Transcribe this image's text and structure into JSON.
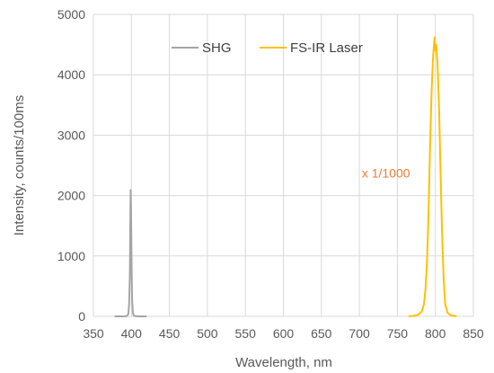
{
  "chart_data": {
    "type": "line",
    "xlabel": "Wavelength, nm",
    "ylabel": "Intensity, counts/100ms",
    "xlim": [
      350,
      850
    ],
    "ylim": [
      0,
      5000
    ],
    "x_ticks": [
      350,
      400,
      450,
      500,
      550,
      600,
      650,
      700,
      750,
      800,
      850
    ],
    "y_ticks": [
      0,
      1000,
      2000,
      3000,
      4000,
      5000
    ],
    "grid": true,
    "legend_position": "top-center",
    "annotation": {
      "text": "x 1/1000",
      "color": "#ED7D31",
      "x": 735,
      "y": 2300
    },
    "series": [
      {
        "name": "SHG",
        "color": "#A5A5A5",
        "x": [
          378,
          385,
          390,
          394,
          396,
          397,
          398,
          398.5,
          399,
          399.5,
          400,
          400.5,
          401,
          402,
          403,
          405,
          410,
          420
        ],
        "y": [
          0,
          0,
          0,
          5,
          40,
          200,
          700,
          1500,
          2090,
          1800,
          1200,
          600,
          250,
          60,
          15,
          5,
          0,
          0
        ]
      },
      {
        "name": "FS-IR Laser",
        "color": "#FFC000",
        "x": [
          765,
          772,
          778,
          782,
          785,
          787,
          789,
          791,
          793,
          795,
          797,
          799,
          800,
          801,
          803,
          805,
          807,
          809,
          811,
          813,
          816,
          820,
          828
        ],
        "y": [
          0,
          10,
          30,
          80,
          200,
          450,
          900,
          1700,
          2800,
          3700,
          4300,
          4620,
          4400,
          4500,
          4150,
          3400,
          2300,
          1300,
          600,
          200,
          60,
          20,
          0
        ]
      }
    ]
  }
}
